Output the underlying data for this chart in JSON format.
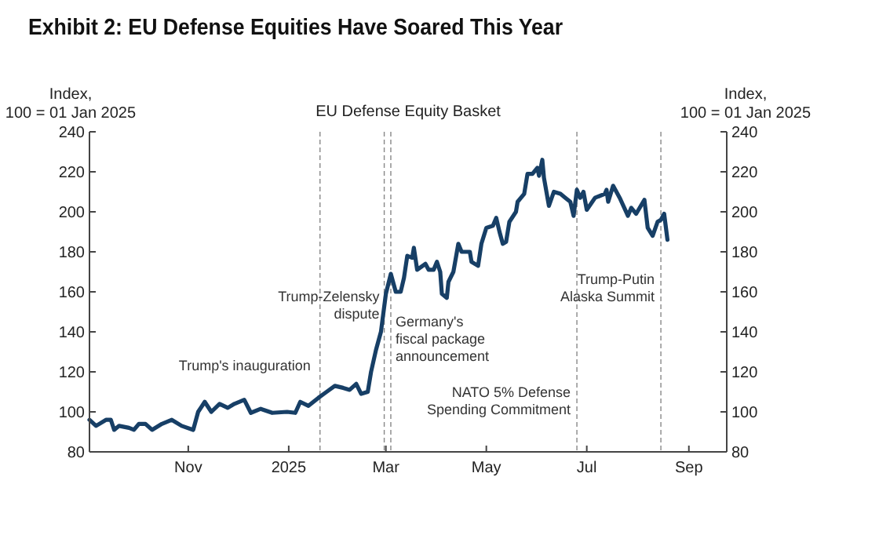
{
  "chart_data": {
    "type": "line",
    "title": "Exhibit 2: EU Defense Equities Have Soared This Year",
    "subtitle": "EU Defense Equity Basket",
    "ylabel": "Index,\n100 = 01 Jan 2025",
    "y2label": "Index,\n100 = 01 Jan 2025",
    "xlim": [
      "2024-09-02",
      "2025-09-24"
    ],
    "xticks": [
      {
        "value": "2024-11-01",
        "label": "Nov"
      },
      {
        "value": "2025-01-01",
        "label": "2025"
      },
      {
        "value": "2025-03-01",
        "label": "Mar"
      },
      {
        "value": "2025-05-01",
        "label": "May"
      },
      {
        "value": "2025-07-01",
        "label": "Jul"
      },
      {
        "value": "2025-09-01",
        "label": "Sep"
      }
    ],
    "ylim": [
      80,
      240
    ],
    "yticks": [
      80,
      100,
      120,
      140,
      160,
      180,
      200,
      220,
      240
    ],
    "y2lim": [
      80,
      240
    ],
    "y2ticks": [
      80,
      100,
      120,
      140,
      160,
      180,
      200,
      220,
      240
    ],
    "marker": "none",
    "line_style": "solid",
    "x": [
      "2024-09-02",
      "2024-09-06",
      "2024-09-12",
      "2024-09-15",
      "2024-09-17",
      "2024-09-20",
      "2024-09-26",
      "2024-09-29",
      "2024-10-02",
      "2024-10-06",
      "2024-10-10",
      "2024-10-16",
      "2024-10-22",
      "2024-10-28",
      "2024-11-04",
      "2024-11-07",
      "2024-11-11",
      "2024-11-15",
      "2024-11-20",
      "2024-11-25",
      "2024-11-29",
      "2024-12-05",
      "2024-12-09",
      "2024-12-15",
      "2024-12-22",
      "2024-12-31",
      "2025-01-05",
      "2025-01-08",
      "2025-01-13",
      "2025-01-19",
      "2025-01-24",
      "2025-01-29",
      "2025-02-03",
      "2025-02-07",
      "2025-02-11",
      "2025-02-14",
      "2025-02-18",
      "2025-02-20",
      "2025-02-23",
      "2025-02-26",
      "2025-03-01",
      "2025-03-04",
      "2025-03-07",
      "2025-03-10",
      "2025-03-12",
      "2025-03-14",
      "2025-03-17",
      "2025-03-18",
      "2025-03-20",
      "2025-03-25",
      "2025-03-27",
      "2025-03-30",
      "2025-04-01",
      "2025-04-03",
      "2025-04-04",
      "2025-04-07",
      "2025-04-08",
      "2025-04-11",
      "2025-04-14",
      "2025-04-16",
      "2025-04-21",
      "2025-04-22",
      "2025-04-26",
      "2025-04-28",
      "2025-05-01",
      "2025-05-05",
      "2025-05-07",
      "2025-05-09",
      "2025-05-11",
      "2025-05-13",
      "2025-05-15",
      "2025-05-19",
      "2025-05-20",
      "2025-05-24",
      "2025-05-26",
      "2025-05-29",
      "2025-06-01",
      "2025-06-02",
      "2025-06-04",
      "2025-06-05",
      "2025-06-08",
      "2025-06-11",
      "2025-06-15",
      "2025-06-18",
      "2025-06-21",
      "2025-06-23",
      "2025-06-25",
      "2025-06-27",
      "2025-06-29",
      "2025-07-01",
      "2025-07-06",
      "2025-07-12",
      "2025-07-13",
      "2025-07-14",
      "2025-07-17",
      "2025-07-21",
      "2025-07-26",
      "2025-07-28",
      "2025-07-31",
      "2025-08-05",
      "2025-08-07",
      "2025-08-10",
      "2025-08-13",
      "2025-08-15",
      "2025-08-17",
      "2025-08-19"
    ],
    "series": [
      {
        "color": "#173f66",
        "values": [
          96,
          93,
          96,
          96,
          91,
          93,
          92,
          91,
          94,
          94,
          91,
          94,
          96,
          93,
          91,
          100,
          105,
          100,
          104,
          102,
          104,
          106,
          99.5,
          101.5,
          99.5,
          100,
          99.5,
          105,
          103,
          107,
          110,
          113,
          112,
          111,
          114,
          109,
          110,
          120,
          131,
          140,
          159,
          169,
          160,
          160,
          167,
          178,
          177,
          182,
          171,
          174,
          171,
          171,
          175,
          170,
          159,
          157,
          165,
          170,
          184,
          180,
          180,
          175,
          173,
          184,
          192,
          193,
          197,
          190,
          184,
          185,
          195,
          200,
          205,
          209,
          219,
          219,
          222,
          218,
          226,
          217,
          203,
          210,
          209,
          207,
          205,
          198,
          211,
          207,
          210,
          201,
          207,
          209,
          211,
          205,
          213,
          207,
          198,
          202,
          199,
          206,
          192,
          188,
          195,
          196,
          199,
          186
        ]
      }
    ],
    "ref_lines": [
      {
        "axis": "x",
        "value": "2025-01-20",
        "label": "Trump's inauguration",
        "color": "#888888",
        "line_style": "dashed"
      },
      {
        "axis": "x",
        "value": "2025-02-28",
        "label": "Trump-Zelensky\ndispute",
        "color": "#888888",
        "line_style": "dashed"
      },
      {
        "axis": "x",
        "value": "2025-03-04",
        "label": "Germany's\nfiscal package\nannouncement",
        "color": "#888888",
        "line_style": "dashed"
      },
      {
        "axis": "x",
        "value": "2025-06-25",
        "label": "NATO 5% Defense\nSpending Commitment",
        "color": "#888888",
        "line_style": "dashed"
      },
      {
        "axis": "x",
        "value": "2025-08-15",
        "label": "Trump-Putin\nAlaska Summit",
        "color": "#888888",
        "line_style": "dashed"
      }
    ]
  }
}
